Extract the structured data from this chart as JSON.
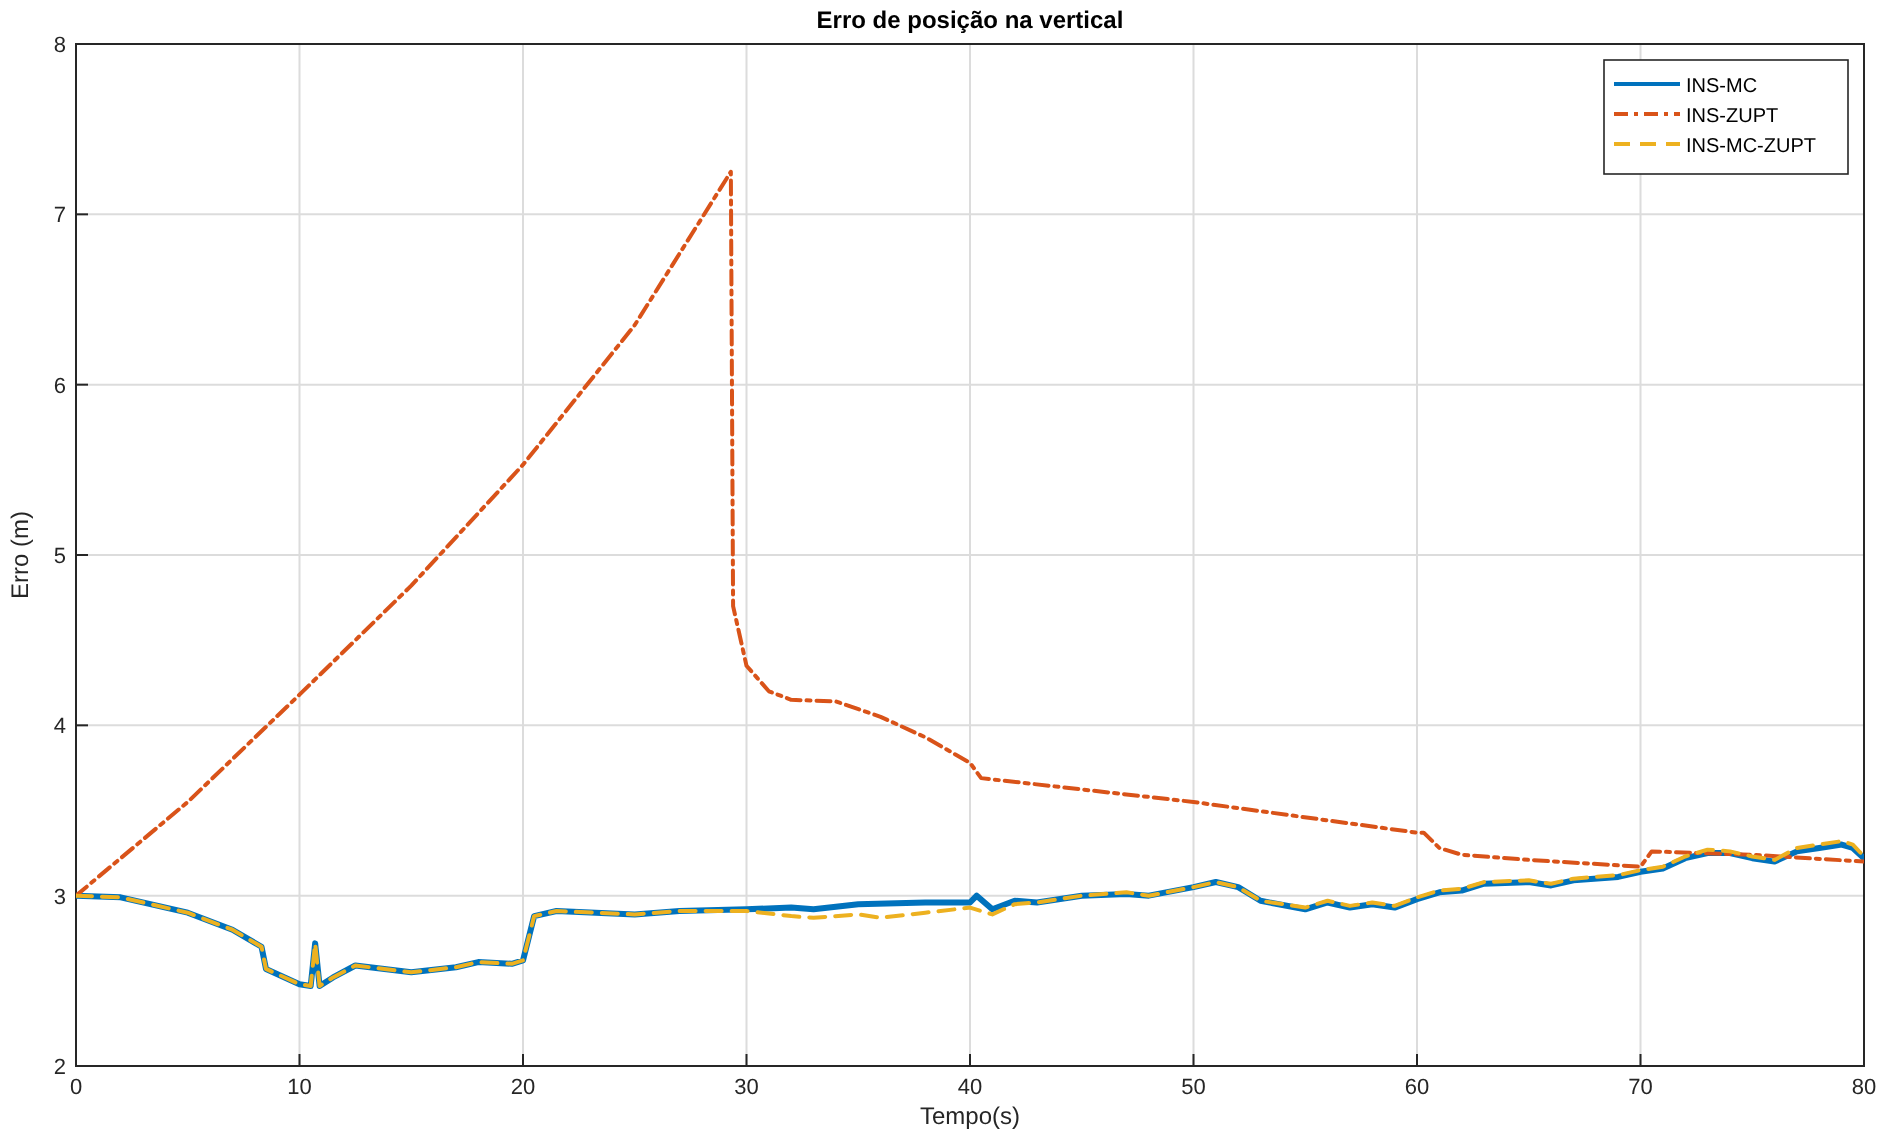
{
  "chart_data": {
    "type": "line",
    "title": "Erro de posição na vertical",
    "xlabel": "Tempo(s)",
    "ylabel": "Erro (m)",
    "xlim": [
      0,
      80
    ],
    "ylim": [
      2,
      8
    ],
    "xticks": [
      0,
      10,
      20,
      30,
      40,
      50,
      60,
      70,
      80
    ],
    "yticks": [
      2,
      3,
      4,
      5,
      6,
      7,
      8
    ],
    "grid": true,
    "legend": "top right",
    "series": [
      {
        "name": "INS-MC",
        "color": "#0072bd",
        "line_style": "solid",
        "x": [
          0,
          2,
          5,
          7,
          8.3,
          8.5,
          10,
          10.5,
          10.7,
          10.9,
          11.5,
          12.5,
          15,
          17,
          18,
          19.5,
          20,
          20.5,
          21.5,
          25,
          27,
          30,
          32,
          33,
          35,
          38,
          40,
          40.3,
          41,
          42,
          43,
          45,
          47,
          48,
          50,
          51,
          52,
          53,
          55,
          56,
          57,
          58,
          59,
          60,
          61,
          62,
          63,
          65,
          66,
          67,
          69,
          70,
          71,
          72,
          73,
          74,
          75,
          76,
          77,
          78,
          79,
          79.5,
          80
        ],
        "values": [
          3,
          2.99,
          2.9,
          2.8,
          2.7,
          2.57,
          2.48,
          2.47,
          2.72,
          2.47,
          2.52,
          2.59,
          2.55,
          2.58,
          2.61,
          2.6,
          2.62,
          2.88,
          2.91,
          2.89,
          2.91,
          2.92,
          2.93,
          2.92,
          2.95,
          2.96,
          2.96,
          3,
          2.92,
          2.97,
          2.96,
          3,
          3.01,
          3,
          3.05,
          3.08,
          3.05,
          2.97,
          2.92,
          2.96,
          2.93,
          2.95,
          2.93,
          2.98,
          3.02,
          3.03,
          3.07,
          3.08,
          3.06,
          3.09,
          3.11,
          3.14,
          3.16,
          3.22,
          3.25,
          3.25,
          3.22,
          3.2,
          3.26,
          3.28,
          3.3,
          3.28,
          3.22
        ]
      },
      {
        "name": "INS-ZUPT",
        "color": "#d95319",
        "line_style": "dashdot",
        "x": [
          0,
          5,
          10,
          15,
          20,
          25,
          29.3,
          29.4,
          30,
          31,
          32,
          34,
          36,
          38,
          40,
          40.5,
          50,
          60,
          60.3,
          61,
          62,
          65,
          70,
          70.5,
          75,
          80
        ],
        "values": [
          3,
          3.55,
          4.18,
          4.82,
          5.53,
          6.35,
          7.25,
          4.7,
          4.35,
          4.2,
          4.15,
          4.14,
          4.05,
          3.93,
          3.78,
          3.69,
          3.55,
          3.37,
          3.37,
          3.28,
          3.24,
          3.21,
          3.17,
          3.26,
          3.24,
          3.2
        ]
      },
      {
        "name": "INS-MC-ZUPT",
        "color": "#edb120",
        "line_style": "dashed",
        "x": [
          0,
          2,
          5,
          7,
          8.3,
          8.5,
          10,
          10.5,
          10.7,
          10.9,
          11.5,
          12.5,
          15,
          17,
          18,
          19.5,
          20,
          20.5,
          21.5,
          25,
          27,
          30,
          32,
          33,
          35,
          36,
          38,
          40,
          41,
          42,
          43,
          45,
          47,
          48,
          50,
          51,
          52,
          53,
          55,
          56,
          57,
          58,
          59,
          60,
          61,
          62,
          63,
          65,
          66,
          67,
          69,
          70,
          71,
          72,
          73,
          74,
          75,
          76,
          77,
          78,
          79,
          79.5,
          80
        ],
        "values": [
          3,
          2.99,
          2.9,
          2.8,
          2.7,
          2.57,
          2.48,
          2.47,
          2.72,
          2.47,
          2.52,
          2.59,
          2.55,
          2.58,
          2.61,
          2.6,
          2.62,
          2.88,
          2.91,
          2.89,
          2.91,
          2.91,
          2.88,
          2.87,
          2.89,
          2.87,
          2.9,
          2.93,
          2.89,
          2.95,
          2.96,
          3,
          3.02,
          3,
          3.05,
          3.08,
          3.05,
          2.97,
          2.93,
          2.97,
          2.94,
          2.96,
          2.94,
          2.99,
          3.03,
          3.04,
          3.08,
          3.09,
          3.07,
          3.1,
          3.12,
          3.15,
          3.17,
          3.23,
          3.27,
          3.26,
          3.23,
          3.21,
          3.28,
          3.3,
          3.32,
          3.3,
          3.23
        ]
      }
    ]
  }
}
